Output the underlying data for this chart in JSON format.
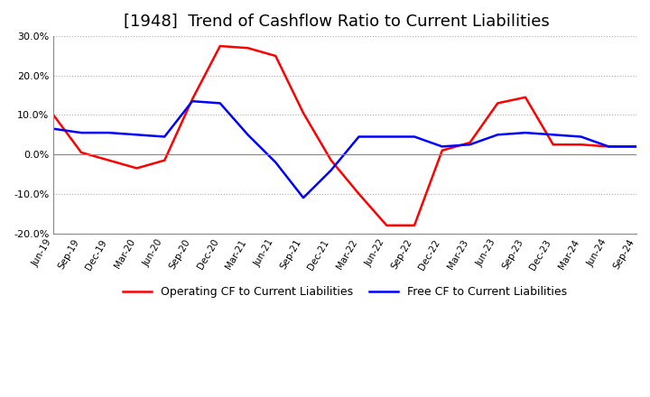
{
  "title": "[1948]  Trend of Cashflow Ratio to Current Liabilities",
  "x_labels": [
    "Jun-19",
    "Sep-19",
    "Dec-19",
    "Mar-20",
    "Jun-20",
    "Sep-20",
    "Dec-20",
    "Mar-21",
    "Jun-21",
    "Sep-21",
    "Dec-21",
    "Mar-22",
    "Jun-22",
    "Sep-22",
    "Dec-22",
    "Mar-23",
    "Jun-23",
    "Sep-23",
    "Dec-23",
    "Mar-24",
    "Jun-24",
    "Sep-24"
  ],
  "operating_cf": [
    10.0,
    0.5,
    -1.5,
    -3.5,
    -1.5,
    14.0,
    27.5,
    27.0,
    25.0,
    10.5,
    -1.5,
    -10.0,
    -18.0,
    -18.0,
    1.0,
    3.0,
    13.0,
    14.5,
    2.5,
    2.5,
    2.0,
    2.0
  ],
  "free_cf": [
    6.5,
    5.5,
    5.5,
    5.0,
    4.5,
    13.5,
    13.0,
    5.0,
    -2.0,
    -11.0,
    -4.0,
    4.5,
    4.5,
    4.5,
    2.0,
    2.5,
    5.0,
    5.5,
    5.0,
    4.5,
    2.0,
    2.0
  ],
  "operating_color": "#ff0000",
  "free_color": "#0000ff",
  "ylim": [
    -20.0,
    30.0
  ],
  "yticks": [
    -20.0,
    -10.0,
    0.0,
    10.0,
    20.0,
    30.0
  ],
  "background_color": "#ffffff",
  "grid_color": "#aaaaaa",
  "title_fontsize": 13,
  "legend_labels": [
    "Operating CF to Current Liabilities",
    "Free CF to Current Liabilities"
  ]
}
